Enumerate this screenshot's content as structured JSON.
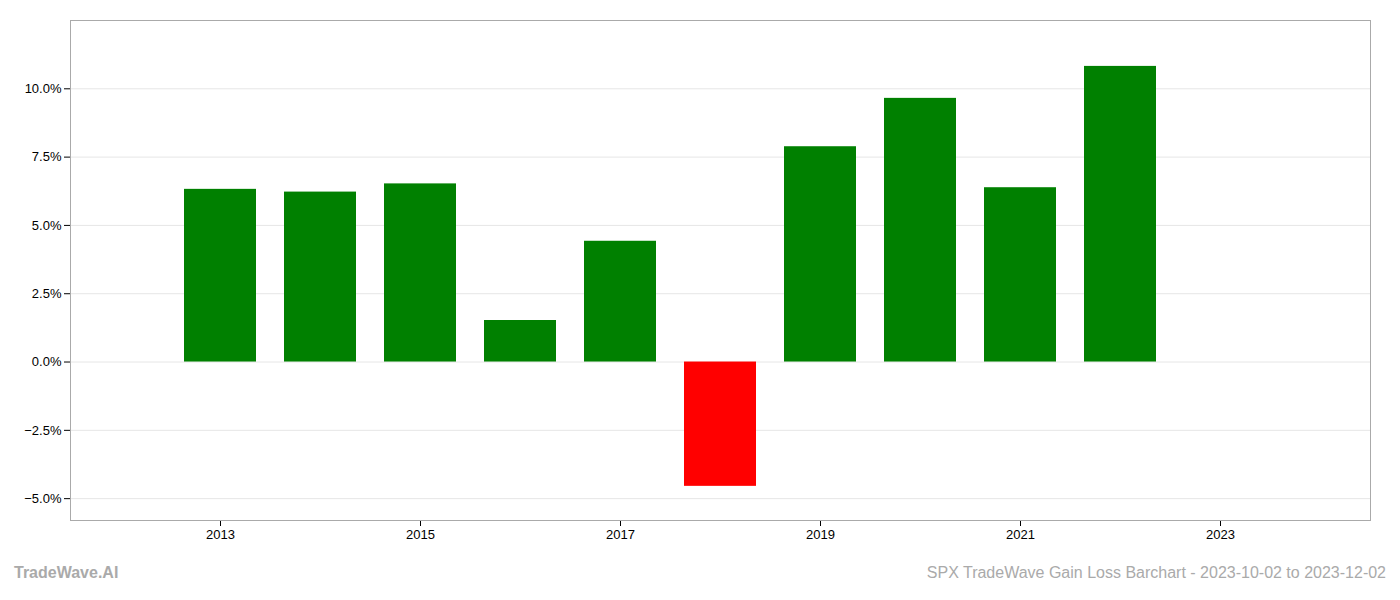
{
  "chart_data": {
    "type": "bar",
    "x": [
      2013,
      2014,
      2015,
      2016,
      2017,
      2018,
      2019,
      2020,
      2021,
      2022
    ],
    "values": [
      6.32,
      6.22,
      6.52,
      1.52,
      4.42,
      -4.55,
      7.88,
      9.65,
      6.38,
      10.82
    ],
    "colors": [
      "#008000",
      "#008000",
      "#008000",
      "#008000",
      "#008000",
      "#ff0000",
      "#008000",
      "#008000",
      "#008000",
      "#008000"
    ],
    "xlim": [
      2011.5,
      2024.5
    ],
    "xticks": [
      2013,
      2015,
      2017,
      2019,
      2021,
      2023
    ],
    "ylim": [
      -5.8,
      12.5
    ],
    "yticks": [
      {
        "value": -5.0,
        "label": "−5.0%"
      },
      {
        "value": -2.5,
        "label": "−2.5%"
      },
      {
        "value": 0.0,
        "label": "0.0%"
      },
      {
        "value": 2.5,
        "label": "2.5%"
      },
      {
        "value": 5.0,
        "label": "5.0%"
      },
      {
        "value": 7.5,
        "label": "7.5%"
      },
      {
        "value": 10.0,
        "label": "10.0%"
      }
    ],
    "grid": true,
    "annotations": [
      "TradeWave.AI",
      "SPX TradeWave Gain Loss Barchart - 2023-10-02 to 2023-12-02"
    ]
  }
}
